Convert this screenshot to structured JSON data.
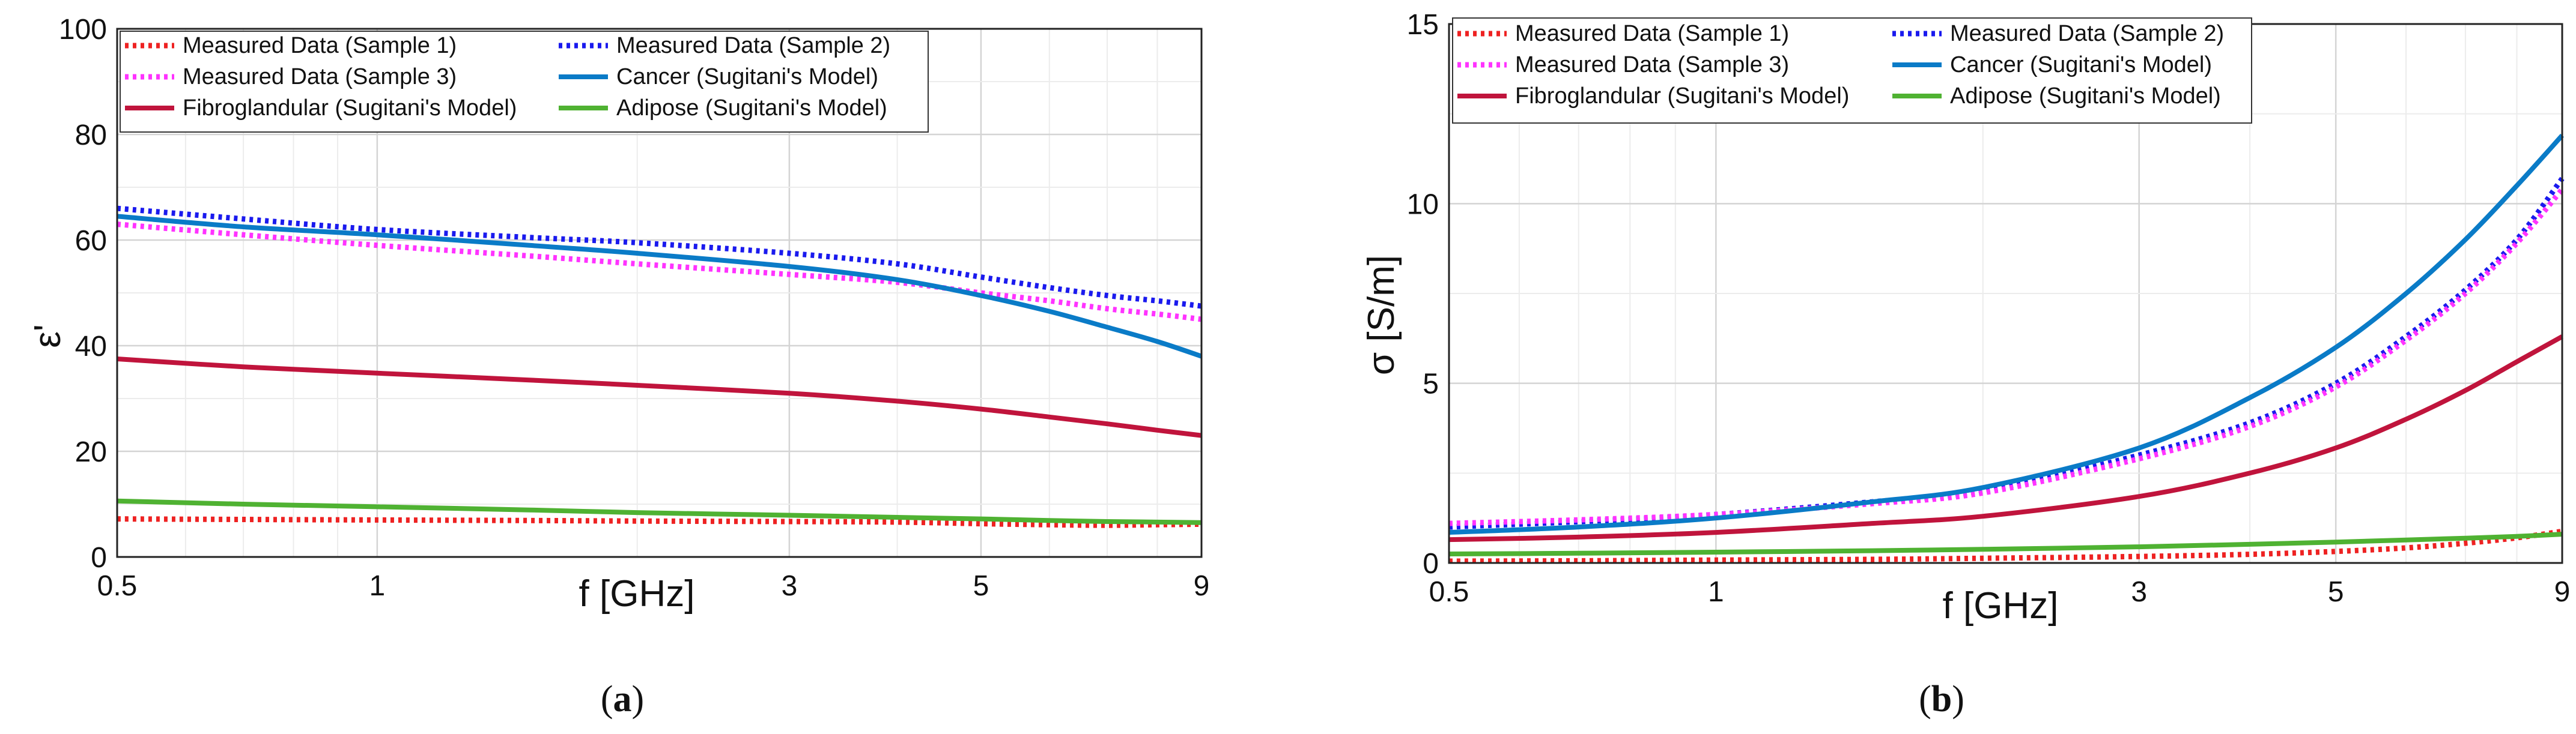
{
  "chart_data": [
    {
      "type": "line",
      "panel_label": "a",
      "title": "",
      "xlabel": "f [GHz]",
      "ylabel": "ε'",
      "xscale": "log",
      "xlim": [
        0.5,
        9
      ],
      "ylim": [
        0,
        100
      ],
      "xticks": [
        0.5,
        1,
        3,
        5,
        9
      ],
      "xtick_labels": [
        "0.5",
        "1",
        "3",
        "5",
        "9"
      ],
      "yticks": [
        0,
        20,
        40,
        60,
        80,
        100
      ],
      "ytick_labels": [
        "0",
        "20",
        "40",
        "60",
        "80",
        "100"
      ],
      "grid": true,
      "legend_position": "top",
      "x": [
        0.5,
        0.7,
        1,
        1.5,
        2,
        3,
        4,
        5,
        6,
        7,
        8,
        9
      ],
      "series": [
        {
          "name": "Measured Data (Sample 1)",
          "color": "#ee2222",
          "style": "dotted",
          "values": [
            7.2,
            7.1,
            7.0,
            6.9,
            6.8,
            6.7,
            6.6,
            6.3,
            6.1,
            6.0,
            6.1,
            6.2
          ]
        },
        {
          "name": "Measured Data (Sample 2)",
          "color": "#1a1aee",
          "style": "dotted",
          "values": [
            66.0,
            64.0,
            62.0,
            60.5,
            59.5,
            57.5,
            55.5,
            53.0,
            51.0,
            49.5,
            48.5,
            47.5
          ]
        },
        {
          "name": "Measured Data (Sample 3)",
          "color": "#ff33ff",
          "style": "dotted",
          "values": [
            63.0,
            61.0,
            59.0,
            57.0,
            55.5,
            53.5,
            52.0,
            50.0,
            48.5,
            47.0,
            46.0,
            45.0
          ]
        },
        {
          "name": "Cancer (Sugitani's Model)",
          "color": "#0a7bc7",
          "style": "solid",
          "values": [
            64.5,
            62.5,
            61.0,
            59.0,
            57.5,
            55.0,
            52.5,
            49.5,
            46.5,
            43.5,
            40.8,
            38.0
          ]
        },
        {
          "name": "Fibroglandular (Sugitani's Model)",
          "color": "#c0143c",
          "style": "solid",
          "values": [
            37.5,
            36.0,
            34.8,
            33.5,
            32.5,
            31.0,
            29.5,
            28.0,
            26.5,
            25.2,
            24.0,
            23.0
          ]
        },
        {
          "name": "Adipose (Sugitani's Model)",
          "color": "#4fb232",
          "style": "solid",
          "values": [
            10.6,
            10.0,
            9.5,
            8.9,
            8.4,
            7.9,
            7.5,
            7.2,
            6.9,
            6.7,
            6.6,
            6.5
          ]
        }
      ]
    },
    {
      "type": "line",
      "panel_label": "b",
      "title": "",
      "xlabel": "f [GHz]",
      "ylabel": "σ [S/m]",
      "xscale": "log",
      "xlim": [
        0.5,
        9
      ],
      "ylim": [
        0,
        15
      ],
      "xticks": [
        0.5,
        1,
        3,
        5,
        9
      ],
      "xtick_labels": [
        "0.5",
        "1",
        "3",
        "5",
        "9"
      ],
      "yticks": [
        0,
        5,
        10,
        15
      ],
      "ytick_labels": [
        "0",
        "5",
        "10",
        "15"
      ],
      "grid": true,
      "legend_position": "top",
      "x": [
        0.5,
        0.7,
        1,
        1.5,
        2,
        3,
        4,
        5,
        6,
        7,
        8,
        9
      ],
      "series": [
        {
          "name": "Measured Data (Sample 1)",
          "color": "#ee2222",
          "style": "dotted",
          "values": [
            0.05,
            0.06,
            0.08,
            0.1,
            0.13,
            0.18,
            0.24,
            0.32,
            0.42,
            0.55,
            0.7,
            0.88
          ]
        },
        {
          "name": "Measured Data (Sample 2)",
          "color": "#1a1aee",
          "style": "dotted",
          "values": [
            1.0,
            1.15,
            1.35,
            1.7,
            2.0,
            3.0,
            3.9,
            5.0,
            6.3,
            7.6,
            9.0,
            10.7
          ]
        },
        {
          "name": "Measured Data (Sample 3)",
          "color": "#ff33ff",
          "style": "dotted",
          "values": [
            1.1,
            1.2,
            1.35,
            1.65,
            1.95,
            2.9,
            3.8,
            4.9,
            6.2,
            7.5,
            8.9,
            10.4
          ]
        },
        {
          "name": "Cancer (Sugitani's Model)",
          "color": "#0a7bc7",
          "style": "solid",
          "values": [
            0.85,
            1.0,
            1.25,
            1.7,
            2.1,
            3.2,
            4.6,
            6.0,
            7.5,
            9.0,
            10.5,
            11.9
          ]
        },
        {
          "name": "Fibroglandular (Sugitani's Model)",
          "color": "#c0143c",
          "style": "solid",
          "values": [
            0.65,
            0.72,
            0.85,
            1.1,
            1.3,
            1.85,
            2.5,
            3.2,
            4.0,
            4.8,
            5.6,
            6.3
          ]
        },
        {
          "name": "Adipose (Sugitani's Model)",
          "color": "#4fb232",
          "style": "solid",
          "values": [
            0.25,
            0.27,
            0.3,
            0.34,
            0.38,
            0.45,
            0.52,
            0.58,
            0.64,
            0.69,
            0.74,
            0.8
          ]
        }
      ]
    }
  ]
}
